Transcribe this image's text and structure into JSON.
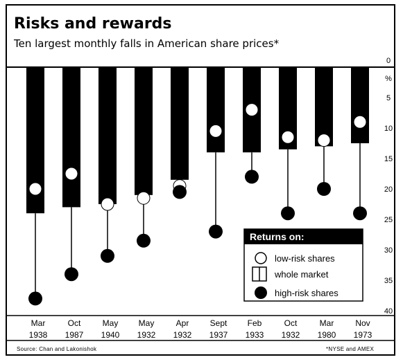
{
  "chart_data": {
    "type": "bar",
    "title": "Risks and rewards",
    "subtitle": "Ten largest monthly falls in American share prices*",
    "y_unit": "%",
    "ylim": [
      0,
      40
    ],
    "y_inverted": true,
    "y_ticks": [
      "0",
      "5",
      "10",
      "15",
      "20",
      "25",
      "30",
      "35",
      "40"
    ],
    "categories": [
      {
        "month": "Mar",
        "year": "1938"
      },
      {
        "month": "Oct",
        "year": "1987"
      },
      {
        "month": "May",
        "year": "1940"
      },
      {
        "month": "May",
        "year": "1932"
      },
      {
        "month": "Apr",
        "year": "1932"
      },
      {
        "month": "Sept",
        "year": "1937"
      },
      {
        "month": "Feb",
        "year": "1933"
      },
      {
        "month": "Oct",
        "year": "1932"
      },
      {
        "month": "Mar",
        "year": "1980"
      },
      {
        "month": "Nov",
        "year": "1973"
      }
    ],
    "series": [
      {
        "name": "low-risk shares",
        "values": [
          20,
          17.5,
          22.5,
          21.5,
          19.5,
          10.5,
          7,
          11.5,
          12,
          9
        ]
      },
      {
        "name": "whole market",
        "values": [
          24,
          23,
          22.5,
          21,
          18.5,
          14,
          14,
          13.5,
          13,
          12.5
        ]
      },
      {
        "name": "high-risk shares",
        "values": [
          38,
          34,
          31,
          28.5,
          20.5,
          27,
          18,
          24,
          20,
          24
        ]
      }
    ],
    "legend": {
      "title": "Returns on:",
      "placement": "bottom-right"
    },
    "source": "Source: Chan and Lakonishok",
    "footnote": "*NYSE and AMEX",
    "colors": {
      "bar": "#000000",
      "background": "#ffffff"
    }
  }
}
